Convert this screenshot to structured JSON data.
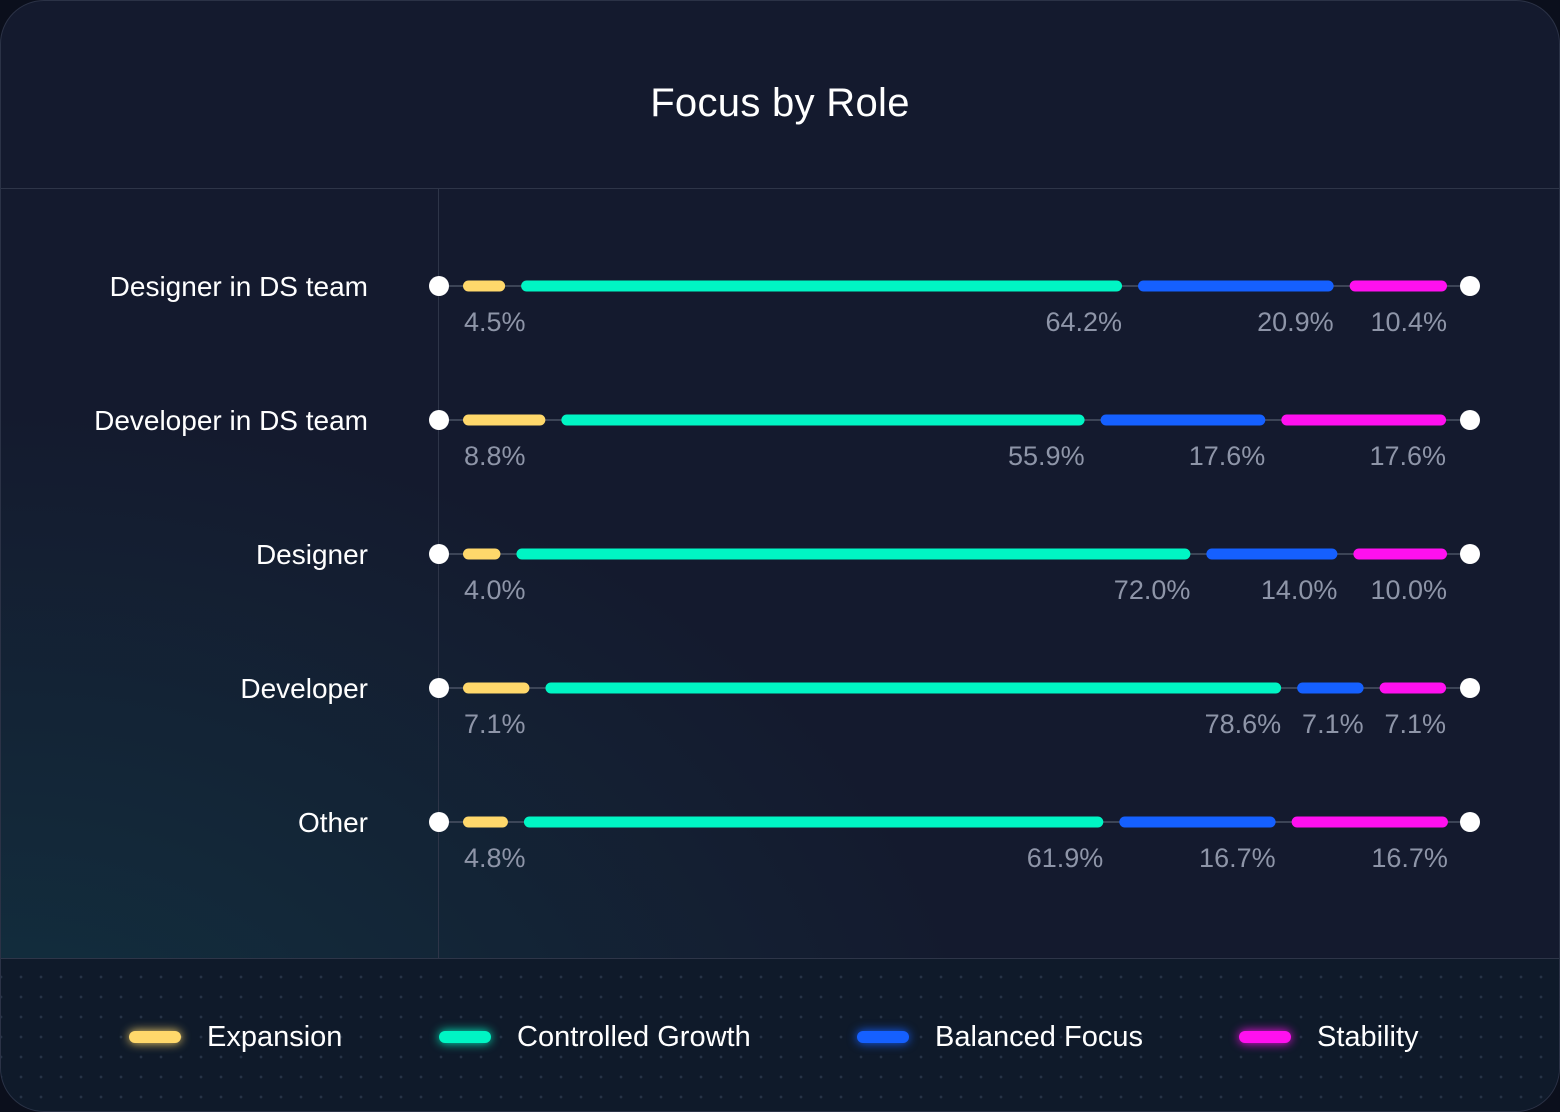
{
  "chart_data": {
    "type": "bar",
    "orientation": "horizontal-stacked",
    "title": "Focus by Role",
    "categories": [
      "Designer in DS team",
      "Developer in DS team",
      "Designer",
      "Developer",
      "Other"
    ],
    "series": [
      {
        "name": "Expansion",
        "color": "#ffd86b",
        "values": [
          4.5,
          8.8,
          4.0,
          7.1,
          4.8
        ],
        "labels": [
          "4.5%",
          "8.8%",
          "4.0%",
          "7.1%",
          "4.8%"
        ]
      },
      {
        "name": "Controlled Growth",
        "color": "#00f5c4",
        "values": [
          64.2,
          55.9,
          72.0,
          78.6,
          61.9
        ],
        "labels": [
          "64.2%",
          "55.9%",
          "72.0%",
          "78.6%",
          "61.9%"
        ]
      },
      {
        "name": "Balanced Focus",
        "color": "#1560ff",
        "values": [
          20.9,
          17.6,
          14.0,
          7.1,
          16.7
        ],
        "labels": [
          "20.9%",
          "17.6%",
          "14.0%",
          "7.1%",
          "16.7%"
        ]
      },
      {
        "name": "Stability",
        "color": "#ff10ef",
        "values": [
          10.4,
          17.6,
          10.0,
          7.1,
          16.7
        ],
        "labels": [
          "10.4%",
          "17.6%",
          "10.0%",
          "7.1%",
          "16.7%"
        ]
      }
    ],
    "xlim": [
      0,
      100
    ],
    "legend": "bottom"
  }
}
